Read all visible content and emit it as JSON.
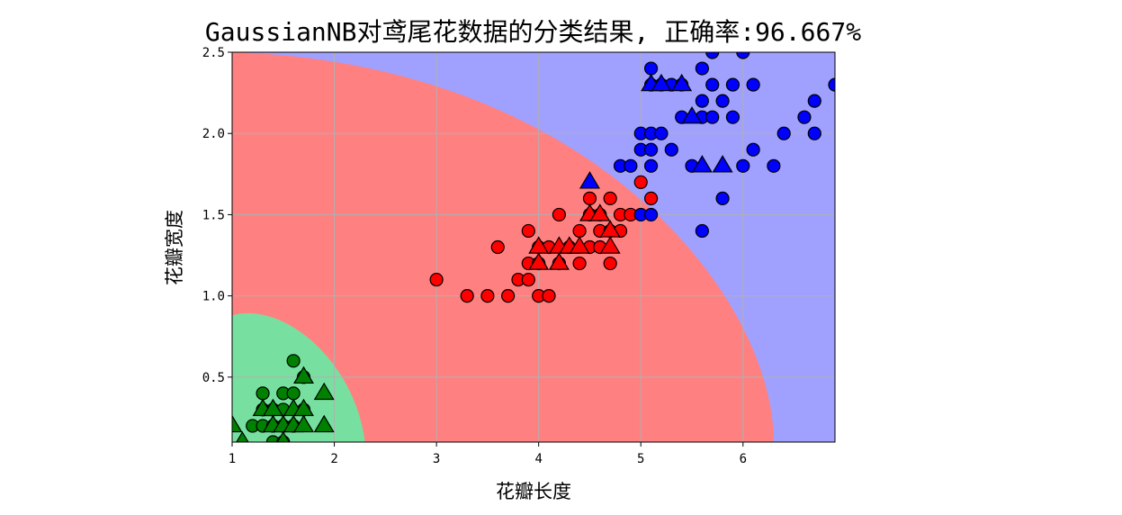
{
  "chart_data": {
    "type": "scatter",
    "title": "GaussianNB对鸢尾花数据的分类结果, 正确率:96.667%",
    "xlabel": "花瓣长度",
    "ylabel": "花瓣宽度",
    "xlim": [
      1.0,
      6.9
    ],
    "ylim": [
      0.1,
      2.5
    ],
    "xticks": [
      "1",
      "2",
      "3",
      "4",
      "5",
      "6"
    ],
    "yticks": [
      "0.5",
      "1.0",
      "1.5",
      "2.0",
      "2.5"
    ],
    "grid": true,
    "legend": "none",
    "region_colors": {
      "green": "#77E0A0",
      "red": "#FF8080",
      "blue": "#A0A0FF"
    },
    "point_colors": {
      "green": "#008000",
      "red": "#FF0000",
      "blue": "#0000FF"
    },
    "marker_meaning": {
      "circle": "train",
      "triangle": "test"
    },
    "series": [
      {
        "color": "green",
        "marker": "circle",
        "points": [
          [
            1.2,
            0.2
          ],
          [
            1.3,
            0.2
          ],
          [
            1.3,
            0.3
          ],
          [
            1.4,
            0.2
          ],
          [
            1.4,
            0.3
          ],
          [
            1.4,
            0.1
          ],
          [
            1.5,
            0.2
          ],
          [
            1.5,
            0.4
          ],
          [
            1.5,
            0.1
          ],
          [
            1.6,
            0.2
          ],
          [
            1.6,
            0.6
          ],
          [
            1.7,
            0.3
          ],
          [
            1.7,
            0.5
          ],
          [
            1.3,
            0.4
          ],
          [
            1.5,
            0.3
          ],
          [
            1.6,
            0.4
          ]
        ]
      },
      {
        "color": "green",
        "marker": "triangle",
        "points": [
          [
            1.0,
            0.2
          ],
          [
            1.1,
            0.1
          ],
          [
            1.3,
            0.3
          ],
          [
            1.4,
            0.2
          ],
          [
            1.5,
            0.2
          ],
          [
            1.5,
            0.1
          ],
          [
            1.6,
            0.2
          ],
          [
            1.6,
            0.3
          ],
          [
            1.7,
            0.2
          ],
          [
            1.7,
            0.3
          ],
          [
            1.7,
            0.5
          ],
          [
            1.9,
            0.2
          ],
          [
            1.9,
            0.4
          ],
          [
            1.4,
            0.3
          ]
        ]
      },
      {
        "color": "red",
        "marker": "circle",
        "points": [
          [
            3.0,
            1.1
          ],
          [
            3.3,
            1.0
          ],
          [
            3.5,
            1.0
          ],
          [
            3.6,
            1.3
          ],
          [
            3.7,
            1.0
          ],
          [
            3.8,
            1.1
          ],
          [
            3.9,
            1.1
          ],
          [
            3.9,
            1.2
          ],
          [
            3.9,
            1.4
          ],
          [
            4.0,
            1.0
          ],
          [
            4.0,
            1.3
          ],
          [
            4.0,
            1.2
          ],
          [
            4.1,
            1.0
          ],
          [
            4.1,
            1.3
          ],
          [
            4.2,
            1.5
          ],
          [
            4.2,
            1.2
          ],
          [
            4.3,
            1.3
          ],
          [
            4.4,
            1.2
          ],
          [
            4.4,
            1.4
          ],
          [
            4.5,
            1.5
          ],
          [
            4.5,
            1.3
          ],
          [
            4.5,
            1.6
          ],
          [
            4.6,
            1.3
          ],
          [
            4.6,
            1.4
          ],
          [
            4.6,
            1.5
          ],
          [
            4.7,
            1.2
          ],
          [
            4.7,
            1.4
          ],
          [
            4.7,
            1.6
          ],
          [
            4.8,
            1.4
          ],
          [
            4.8,
            1.5
          ],
          [
            4.9,
            1.5
          ],
          [
            5.0,
            1.7
          ],
          [
            5.1,
            1.6
          ]
        ]
      },
      {
        "color": "red",
        "marker": "triangle",
        "points": [
          [
            4.0,
            1.3
          ],
          [
            4.0,
            1.2
          ],
          [
            4.2,
            1.3
          ],
          [
            4.3,
            1.3
          ],
          [
            4.4,
            1.3
          ],
          [
            4.5,
            1.5
          ],
          [
            4.6,
            1.5
          ],
          [
            4.7,
            1.3
          ],
          [
            4.7,
            1.4
          ],
          [
            4.2,
            1.2
          ]
        ]
      },
      {
        "color": "blue",
        "marker": "circle",
        "points": [
          [
            4.8,
            1.8
          ],
          [
            4.9,
            1.8
          ],
          [
            5.0,
            1.5
          ],
          [
            5.0,
            1.9
          ],
          [
            5.0,
            2.0
          ],
          [
            5.1,
            1.5
          ],
          [
            5.1,
            1.8
          ],
          [
            5.1,
            1.9
          ],
          [
            5.1,
            2.0
          ],
          [
            5.1,
            2.3
          ],
          [
            5.1,
            2.4
          ],
          [
            5.2,
            2.0
          ],
          [
            5.2,
            2.3
          ],
          [
            5.3,
            1.9
          ],
          [
            5.3,
            2.3
          ],
          [
            5.4,
            2.1
          ],
          [
            5.4,
            2.3
          ],
          [
            5.5,
            1.8
          ],
          [
            5.6,
            1.4
          ],
          [
            5.6,
            2.1
          ],
          [
            5.6,
            2.2
          ],
          [
            5.6,
            2.4
          ],
          [
            5.7,
            2.1
          ],
          [
            5.7,
            2.3
          ],
          [
            5.7,
            2.5
          ],
          [
            5.8,
            1.6
          ],
          [
            5.8,
            2.2
          ],
          [
            5.9,
            2.1
          ],
          [
            5.9,
            2.3
          ],
          [
            6.0,
            1.8
          ],
          [
            6.0,
            2.5
          ],
          [
            6.1,
            1.9
          ],
          [
            6.1,
            2.3
          ],
          [
            6.3,
            1.8
          ],
          [
            6.4,
            2.0
          ],
          [
            6.6,
            2.1
          ],
          [
            6.7,
            2.0
          ],
          [
            6.7,
            2.2
          ],
          [
            6.9,
            2.3
          ]
        ]
      },
      {
        "color": "blue",
        "marker": "triangle",
        "points": [
          [
            4.5,
            1.7
          ],
          [
            5.1,
            2.3
          ],
          [
            5.2,
            2.3
          ],
          [
            5.4,
            2.3
          ],
          [
            5.5,
            2.1
          ],
          [
            5.6,
            1.8
          ],
          [
            5.8,
            1.8
          ]
        ]
      }
    ]
  }
}
